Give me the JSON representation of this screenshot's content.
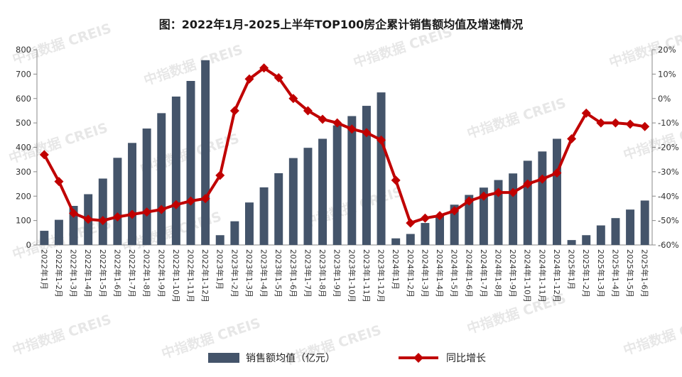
{
  "title": "图：2022年1月-2025上半年TOP100房企累计销售额均值及增速情况",
  "watermark": "中指数据 CREIS",
  "colors": {
    "bar": "#44546a",
    "line": "#c00000"
  },
  "chart_data": {
    "type": "bar+line",
    "title": "图：2022年1月-2025上半年TOP100房企累计销售额均值及增速情况",
    "categories": [
      "2022年1月",
      "2022年1-2月",
      "2022年1-3月",
      "2022年1-4月",
      "2022年1-5月",
      "2022年1-6月",
      "2022年1-7月",
      "2022年1-8月",
      "2022年1-9月",
      "2022年1-10月",
      "2022年1-11月",
      "2022年1-12月",
      "2023年1月",
      "2023年1-2月",
      "2023年1-3月",
      "2023年1-4月",
      "2023年1-5月",
      "2023年1-6月",
      "2023年1-7月",
      "2023年1-8月",
      "2023年1-9月",
      "2023年1-10月",
      "2023年1-11月",
      "2023年1-12月",
      "2024年1月",
      "2024年1-2月",
      "2024年1-3月",
      "2024年1-4月",
      "2024年1-5月",
      "2024年1-6月",
      "2024年1-7月",
      "2024年1-8月",
      "2024年1-9月",
      "2024年1-10月",
      "2024年1-11月",
      "2024年1-12月",
      "2025年1月",
      "2025年1-2月",
      "2025年1-3月",
      "2025年1-4月",
      "2025年1-5月",
      "2025年1-6月"
    ],
    "series": [
      {
        "name": "销售额均值（亿元）",
        "type": "bar",
        "axis": "left",
        "values": [
          58,
          103,
          160,
          208,
          272,
          357,
          418,
          477,
          540,
          608,
          672,
          757,
          40,
          97,
          174,
          236,
          294,
          356,
          398,
          435,
          490,
          528,
          570,
          625,
          27,
          45,
          90,
          120,
          165,
          205,
          235,
          266,
          293,
          345,
          383,
          435,
          20,
          40,
          80,
          110,
          145,
          182
        ]
      },
      {
        "name": "同比增长",
        "type": "line",
        "axis": "right",
        "unit": "%",
        "values": [
          -23,
          -34,
          -47,
          -49.5,
          -50,
          -48.5,
          -47.5,
          -46.5,
          -45.5,
          -43.5,
          -42,
          -41,
          -31.5,
          -5,
          8,
          12.5,
          8.5,
          0,
          -5,
          -8.5,
          -10,
          -12.5,
          -14,
          -17,
          -33.5,
          -51,
          -49,
          -48,
          -46,
          -42,
          -40,
          -38.5,
          -38.5,
          -35,
          -33,
          -30.5,
          -16.5,
          -6,
          -10,
          -10,
          -10.5,
          -11.5
        ]
      }
    ],
    "y_left": {
      "min": 0,
      "max": 800,
      "step": 100,
      "ticks": [
        "0",
        "100",
        "200",
        "300",
        "400",
        "500",
        "600",
        "700",
        "800"
      ]
    },
    "y_right": {
      "min": -60,
      "max": 20,
      "step": 10,
      "ticks": [
        "-60%",
        "-50%",
        "-40%",
        "-30%",
        "-20%",
        "-10%",
        "0%",
        "10%",
        "20%"
      ]
    },
    "grid": false,
    "legend_position": "bottom"
  }
}
